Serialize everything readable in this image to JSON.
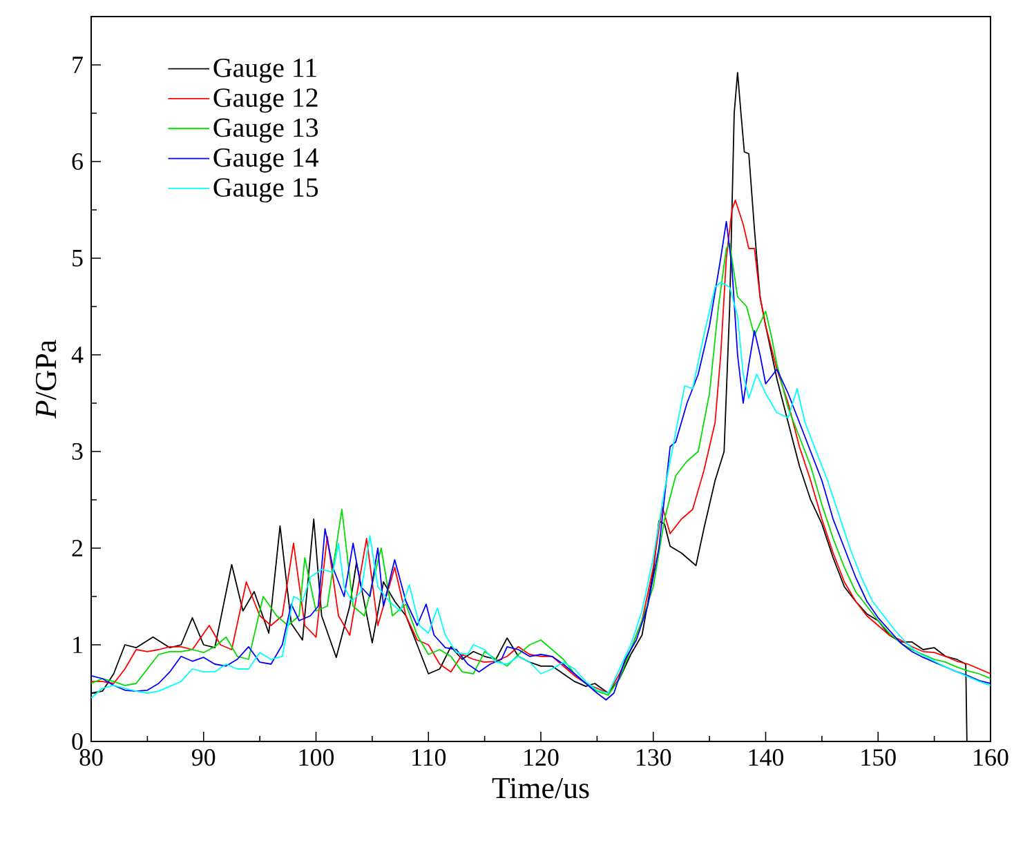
{
  "chart_data": {
    "type": "line",
    "xlabel": "Time/us",
    "ylabel": "*P*/GPa",
    "xlim": [
      80,
      160
    ],
    "ylim": [
      0,
      7.5
    ],
    "xticks": [
      80,
      90,
      100,
      110,
      120,
      130,
      140,
      150,
      160
    ],
    "yticks": [
      0,
      1,
      2,
      3,
      4,
      5,
      6,
      7
    ],
    "grid": false,
    "legend": "top left",
    "marker": "none",
    "line_style": "solid",
    "series": [
      {
        "name": "Gauge 11",
        "color": "#000000",
        "x": [
          80,
          81,
          82,
          83,
          84,
          85.5,
          87,
          88,
          89,
          90,
          91,
          92.5,
          93.5,
          94.5,
          95.8,
          96.8,
          97.8,
          98.8,
          99.8,
          100.5,
          101.8,
          103,
          103.6,
          105,
          106,
          107,
          108,
          109,
          110,
          111,
          112,
          113,
          114,
          115,
          116,
          117,
          118,
          119,
          120,
          121,
          122,
          123,
          124,
          124.8,
          126,
          127,
          128,
          129,
          130,
          130.5,
          131,
          131.5,
          132.5,
          133.8,
          134.5,
          135.5,
          136.3,
          136.8,
          137.2,
          137.5,
          137.8,
          138.1,
          138.5,
          139,
          139.5,
          140,
          141,
          142,
          143,
          144,
          145,
          146,
          147,
          148,
          149,
          150,
          151,
          152,
          153,
          154,
          155,
          156,
          157,
          157.8,
          157.9
        ],
        "values": [
          0.5,
          0.52,
          0.7,
          1.0,
          0.97,
          1.08,
          0.97,
          1.0,
          1.28,
          1.0,
          0.97,
          1.83,
          1.35,
          1.55,
          1.12,
          2.23,
          1.22,
          1.05,
          2.3,
          1.3,
          0.87,
          1.4,
          1.85,
          1.02,
          1.65,
          1.45,
          1.3,
          1.0,
          0.7,
          0.75,
          0.98,
          0.85,
          0.93,
          0.88,
          0.85,
          1.07,
          0.88,
          0.82,
          0.78,
          0.78,
          0.7,
          0.62,
          0.57,
          0.6,
          0.5,
          0.65,
          0.9,
          1.1,
          1.75,
          2.28,
          2.25,
          2.02,
          1.95,
          1.82,
          2.2,
          2.7,
          3.0,
          4.5,
          6.5,
          6.92,
          6.5,
          6.1,
          6.08,
          5.3,
          4.6,
          4.3,
          3.75,
          3.3,
          2.85,
          2.5,
          2.25,
          1.9,
          1.6,
          1.45,
          1.32,
          1.25,
          1.1,
          1.03,
          1.03,
          0.95,
          0.97,
          0.88,
          0.85,
          0.8,
          0
        ]
      },
      {
        "name": "Gauge 12",
        "color": "#ff0000",
        "x": [
          80,
          81,
          82,
          83,
          84,
          85,
          86,
          87,
          88,
          89,
          90.5,
          91.5,
          92.5,
          93.8,
          95,
          96,
          97,
          98,
          99,
          100,
          101,
          102,
          103,
          104.5,
          105.5,
          107,
          108,
          109,
          110,
          111,
          112,
          113,
          114,
          115,
          116,
          117,
          118,
          119,
          120,
          121,
          122,
          123,
          124,
          125,
          126,
          127,
          128,
          129,
          130,
          130.8,
          131.5,
          132.5,
          133.5,
          134.5,
          135.5,
          136,
          136.5,
          137,
          137.3,
          138,
          138.5,
          139,
          139.5,
          140,
          141,
          142,
          143,
          144,
          145,
          146,
          147,
          148,
          149,
          150,
          151,
          152,
          153,
          154,
          155,
          156,
          157,
          158,
          159,
          160
        ],
        "values": [
          0.62,
          0.62,
          0.6,
          0.75,
          0.95,
          0.93,
          0.95,
          0.98,
          0.98,
          0.95,
          1.2,
          1.0,
          0.95,
          1.65,
          1.3,
          1.2,
          1.3,
          2.05,
          1.2,
          1.08,
          2.12,
          1.3,
          1.1,
          2.1,
          1.2,
          1.8,
          1.3,
          1.05,
          1.0,
          0.8,
          0.72,
          0.9,
          0.85,
          0.82,
          0.83,
          0.88,
          0.98,
          0.9,
          0.88,
          0.88,
          0.78,
          0.68,
          0.6,
          0.55,
          0.5,
          0.7,
          0.95,
          1.25,
          1.8,
          2.43,
          2.15,
          2.3,
          2.4,
          2.8,
          3.3,
          4.0,
          5.0,
          5.5,
          5.6,
          5.35,
          5.1,
          5.1,
          4.6,
          4.3,
          3.85,
          3.5,
          3.05,
          2.7,
          2.3,
          1.95,
          1.65,
          1.45,
          1.3,
          1.2,
          1.1,
          1.05,
          0.98,
          0.93,
          0.92,
          0.88,
          0.83,
          0.8,
          0.75,
          0.7
        ]
      },
      {
        "name": "Gauge 13",
        "color": "#00dd00",
        "x": [
          80,
          81,
          82,
          83,
          84,
          85,
          86,
          87,
          88,
          89,
          90,
          91,
          92,
          93,
          94,
          95.3,
          96.5,
          97.5,
          98.5,
          99,
          100,
          101,
          102.3,
          103.3,
          104.3,
          105.8,
          106.8,
          108,
          109,
          110,
          111,
          112,
          113,
          114,
          115,
          116,
          117,
          118,
          119,
          120,
          121,
          122,
          123,
          124,
          125,
          126,
          127,
          128,
          129,
          130,
          131,
          132,
          133,
          134,
          135,
          135.8,
          136.5,
          136.8,
          137.5,
          138.3,
          139,
          140,
          140.5,
          141,
          142,
          143,
          144,
          145,
          146,
          147,
          148,
          149,
          150,
          151,
          152,
          153,
          154,
          155,
          156,
          157,
          158,
          159,
          160
        ],
        "values": [
          0.6,
          0.65,
          0.62,
          0.58,
          0.6,
          0.75,
          0.9,
          0.93,
          0.93,
          0.95,
          0.92,
          0.98,
          1.08,
          0.88,
          0.85,
          1.5,
          1.3,
          1.2,
          1.3,
          1.9,
          1.35,
          1.4,
          2.4,
          1.4,
          1.3,
          2.0,
          1.3,
          1.42,
          1.1,
          0.9,
          0.95,
          0.88,
          0.72,
          0.7,
          0.93,
          0.85,
          0.78,
          0.9,
          1.0,
          1.05,
          0.95,
          0.85,
          0.7,
          0.6,
          0.52,
          0.48,
          0.65,
          0.95,
          1.25,
          1.6,
          2.3,
          2.75,
          2.9,
          3.0,
          3.6,
          4.5,
          5.1,
          5.15,
          4.6,
          4.5,
          4.2,
          4.45,
          4.2,
          3.9,
          3.45,
          3.15,
          2.85,
          2.45,
          2.1,
          1.8,
          1.55,
          1.4,
          1.25,
          1.12,
          1.02,
          0.95,
          0.9,
          0.85,
          0.82,
          0.77,
          0.73,
          0.7,
          0.65
        ]
      },
      {
        "name": "Gauge 14",
        "color": "#0000ff",
        "x": [
          80,
          81,
          82,
          83,
          84,
          85,
          86,
          87,
          88,
          89,
          90,
          91,
          92,
          93,
          94,
          95,
          96,
          97,
          97.8,
          98.5,
          99.5,
          100.2,
          100.8,
          101.5,
          102.5,
          103.3,
          104,
          104.8,
          105.5,
          106,
          107,
          108,
          109,
          109.8,
          110.5,
          111.5,
          112.5,
          113.5,
          114.5,
          115.5,
          116.5,
          117,
          118,
          119,
          120,
          121,
          122,
          123,
          124,
          125,
          125.8,
          126.5,
          127.5,
          128.5,
          129.5,
          130.5,
          131.5,
          132,
          133,
          134,
          135,
          136,
          136.5,
          137,
          137.5,
          138,
          138.5,
          139,
          139.5,
          140,
          141,
          142,
          143,
          144,
          145,
          146,
          147,
          148,
          149,
          150,
          151,
          152,
          153,
          154,
          155,
          156,
          157,
          158,
          159,
          160
        ],
        "values": [
          0.68,
          0.65,
          0.58,
          0.53,
          0.52,
          0.53,
          0.6,
          0.72,
          0.88,
          0.83,
          0.87,
          0.8,
          0.78,
          0.85,
          0.98,
          0.82,
          0.8,
          1.0,
          1.42,
          1.25,
          1.3,
          1.4,
          2.2,
          1.8,
          1.5,
          2.05,
          1.6,
          1.5,
          2.0,
          1.4,
          1.88,
          1.45,
          1.2,
          1.42,
          1.1,
          0.97,
          0.95,
          0.8,
          0.72,
          0.8,
          0.85,
          0.98,
          0.95,
          0.88,
          0.9,
          0.88,
          0.8,
          0.7,
          0.6,
          0.5,
          0.43,
          0.5,
          0.85,
          1.05,
          1.4,
          2.0,
          3.05,
          3.1,
          3.5,
          3.8,
          4.3,
          5.0,
          5.38,
          4.9,
          4.0,
          3.5,
          3.9,
          4.25,
          4.0,
          3.7,
          3.85,
          3.6,
          3.3,
          3.0,
          2.7,
          2.3,
          2.0,
          1.7,
          1.45,
          1.28,
          1.15,
          1.02,
          0.93,
          0.87,
          0.82,
          0.77,
          0.72,
          0.68,
          0.63,
          0.6
        ]
      },
      {
        "name": "Gauge 15",
        "color": "#00ffff",
        "x": [
          80,
          81,
          82,
          83,
          84,
          85,
          86,
          87,
          88,
          89,
          90,
          91,
          92,
          93,
          94,
          95,
          96,
          97,
          98,
          98.8,
          99.5,
          100.5,
          101.5,
          102,
          102.5,
          103.2,
          104,
          104.8,
          105.5,
          106.5,
          107.5,
          108.3,
          109.2,
          110,
          110.8,
          111.5,
          112.5,
          113.5,
          114,
          115,
          116,
          117,
          118,
          119,
          120,
          121,
          122,
          123,
          124,
          125,
          126,
          127,
          128,
          129,
          130,
          131,
          132,
          132.8,
          133.5,
          134.5,
          135.5,
          136,
          136.8,
          137.5,
          138,
          138.5,
          139.2,
          140,
          141,
          142,
          142.8,
          143.5,
          144.5,
          145.5,
          146.5,
          147.5,
          148.5,
          149.5,
          150.5,
          151.5,
          152.5,
          153.5,
          155,
          156,
          157,
          158,
          159,
          160
        ],
        "values": [
          0.45,
          0.55,
          0.58,
          0.55,
          0.52,
          0.5,
          0.52,
          0.57,
          0.62,
          0.75,
          0.72,
          0.72,
          0.8,
          0.75,
          0.75,
          0.92,
          0.85,
          0.88,
          1.5,
          1.45,
          1.7,
          1.78,
          1.75,
          2.05,
          1.6,
          1.45,
          1.55,
          2.13,
          1.6,
          1.45,
          1.35,
          1.62,
          1.2,
          1.12,
          1.38,
          1.1,
          0.92,
          0.9,
          1.0,
          0.95,
          0.82,
          0.8,
          0.88,
          0.82,
          0.7,
          0.75,
          0.82,
          0.75,
          0.62,
          0.53,
          0.5,
          0.75,
          1.0,
          1.35,
          1.9,
          2.6,
          3.2,
          3.68,
          3.65,
          4.2,
          4.7,
          4.75,
          4.7,
          4.4,
          3.8,
          3.55,
          3.8,
          3.6,
          3.4,
          3.35,
          3.65,
          3.3,
          3.0,
          2.7,
          2.35,
          2.0,
          1.7,
          1.45,
          1.3,
          1.15,
          1.02,
          0.92,
          0.83,
          0.77,
          0.72,
          0.67,
          0.62,
          0.58
        ]
      }
    ]
  }
}
